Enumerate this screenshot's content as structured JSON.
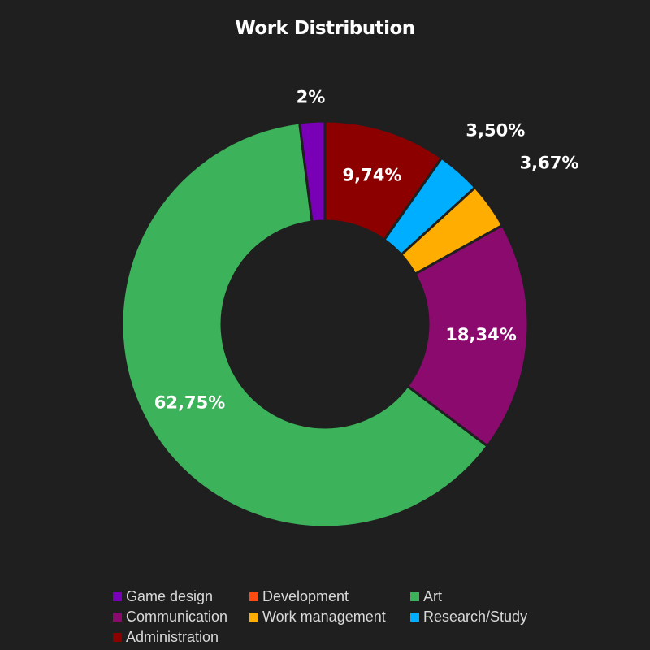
{
  "chart_data": {
    "type": "pie",
    "variant": "donut",
    "title": "Work Distribution",
    "slices": [
      {
        "name": "Game design",
        "value": 2.0,
        "label": "2%",
        "color": "#7a00b8"
      },
      {
        "name": "Development",
        "value": 0.0,
        "label": "",
        "color": "#ff4a12"
      },
      {
        "name": "Art",
        "value": 62.75,
        "label": "62,75%",
        "color": "#3cb35a"
      },
      {
        "name": "Communication",
        "value": 18.34,
        "label": "18,34%",
        "color": "#8b0a6e"
      },
      {
        "name": "Work management",
        "value": 3.67,
        "label": "3,67%",
        "color": "#ffad00"
      },
      {
        "name": "Research/Study",
        "value": 3.5,
        "label": "3,50%",
        "color": "#00aeff"
      },
      {
        "name": "Administration",
        "value": 9.74,
        "label": "9,74%",
        "color": "#8c0000"
      }
    ],
    "legend": {
      "placement": "bottom",
      "rows": [
        [
          "Game design",
          "Development",
          "Art"
        ],
        [
          "Communication",
          "Work management",
          "Research/Study"
        ],
        [
          "Administration"
        ]
      ]
    }
  },
  "colors": {
    "background": "#1f1f1f",
    "slice_border": "#1f1f1f",
    "text": "#ffffff",
    "legend_text": "#d9d9d9"
  }
}
